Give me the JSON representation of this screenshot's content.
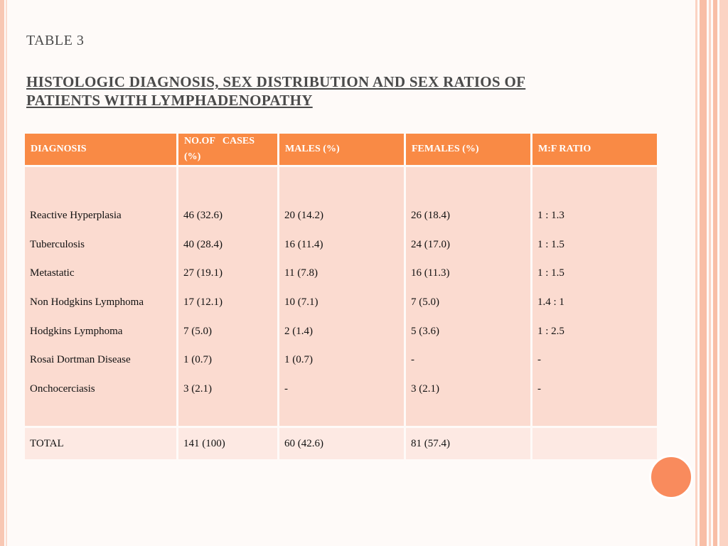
{
  "slide": {
    "table_label": "TABLE 3",
    "heading_line1": " HISTOLOGIC DIAGNOSIS, SEX DISTRIBUTION AND SEX RATIOS OF",
    "heading_line2": "PATIENTS WITH LYMPHADENOPATHY"
  },
  "table": {
    "headers": [
      "DIAGNOSIS",
      "NO.OF   CASES",
      "(%)",
      "MALES (%)",
      "FEMALES (%)",
      "M:F RATIO"
    ],
    "rows": [
      {
        "diagnosis": "Reactive Hyperplasia",
        "cases": "46 (32.6)",
        "males": "20 (14.2)",
        "females": "26 (18.4)",
        "ratio": "1 : 1.3"
      },
      {
        "diagnosis": "Tuberculosis",
        "cases": "40 (28.4)",
        "males": "16 (11.4)",
        "females": "24 (17.0)",
        "ratio": "1 : 1.5"
      },
      {
        "diagnosis": "Metastatic",
        "cases": "27 (19.1)",
        "males": "11 (7.8)",
        "females": "16 (11.3)",
        "ratio": "1 : 1.5"
      },
      {
        "diagnosis": "Non Hodgkins Lymphoma",
        "cases": "17 (12.1)",
        "males": "10 (7.1)",
        "females": "7 (5.0)",
        "ratio": "1.4 : 1"
      },
      {
        "diagnosis": "Hodgkins Lymphoma",
        "cases": "7 (5.0)",
        "males": "2 (1.4)",
        "females": "5 (3.6)",
        "ratio": "1 : 2.5"
      },
      {
        "diagnosis": "Rosai Dortman Disease",
        "cases": "1 (0.7)",
        "males": "1 (0.7)",
        "females": "-",
        "ratio": "-"
      },
      {
        "diagnosis": "Onchocerciasis",
        "cases": "3 (2.1)",
        "males": "-",
        "females": "3 (2.1)",
        "ratio": "-"
      }
    ],
    "total": {
      "label": "TOTAL",
      "cases": "141 (100)",
      "males": "60 (42.6)",
      "females": "81 (57.4)",
      "ratio": ""
    }
  },
  "colors": {
    "header_bg": "#f98a45",
    "body_bg": "#fbdbd0",
    "total_bg": "#fde9e3",
    "accent_circle": "#f98b5d"
  }
}
